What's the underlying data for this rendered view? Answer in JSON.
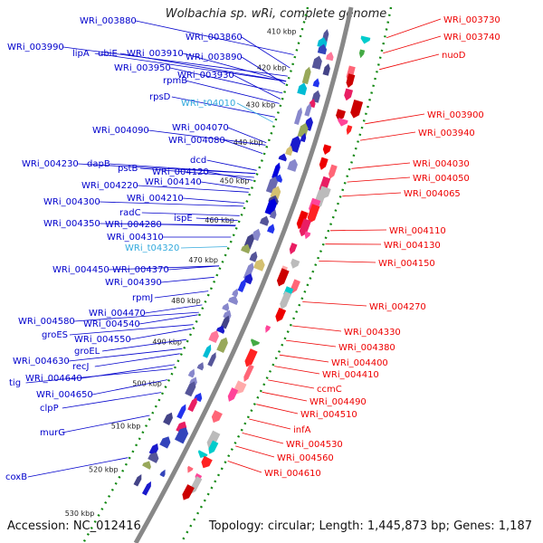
{
  "title": "Wolbachia sp. wRi, complete genome",
  "accession": "Accession: NC_012416",
  "summary": "Topology: circular; Length: 1,445,873 bp; Genes: 1,187",
  "colors": {
    "forward": "#0000cc",
    "reverse": "#ee0000",
    "trna": "#33aadd",
    "backbone": "#888888",
    "ticks": "#118811"
  },
  "ticks": [
    "410 kbp",
    "420 kbp",
    "430 kbp",
    "440 kbp",
    "450 kbp",
    "460 kbp",
    "470 kbp",
    "480 kbp",
    "490 kbp",
    "500 kbp",
    "510 kbp",
    "520 kbp",
    "530 kbp"
  ],
  "left_labels": [
    "WRi_003880",
    "WRi_003860",
    "WRi_003990",
    "lipA",
    "ubiE",
    "WRi_003910",
    "WRi_003890",
    "WRi_003950",
    "WRi_003930",
    "rpmB",
    "rpsD",
    "WRi_t04010",
    "WRi_004070",
    "WRi_004090",
    "WRi_004080",
    "dcd",
    "WRi_004230",
    "dapB",
    "pstB",
    "WRi_004120",
    "WRi_004140",
    "WRi_004220",
    "WRi_004210",
    "WRi_004300",
    "radC",
    "ispE",
    "WRi_004350",
    "WRi_004280",
    "WRi_004310",
    "WRi_t04320",
    "WRi_004450",
    "WRi_004370",
    "WRi_004390",
    "rpmJ",
    "WRi_004470",
    "WRi_004580",
    "WRi_004540",
    "groES",
    "WRi_004550",
    "groEL",
    "WRi_004630",
    "recJ",
    "WRi_004640",
    "tig",
    "WRi_004650",
    "clpP",
    "murG",
    "coxB"
  ],
  "right_labels": [
    "WRi_003730",
    "WRi_003740",
    "nuoD",
    "WRi_003900",
    "WRi_003940",
    "WRi_004030",
    "WRi_004050",
    "WRi_004065",
    "WRi_004110",
    "WRi_004130",
    "WRi_004150",
    "WRi_004270",
    "WRi_004330",
    "WRi_004380",
    "WRi_004400",
    "WRi_004410",
    "ccmC",
    "WRi_004490",
    "WRi_004510",
    "infA",
    "WRi_004530",
    "WRi_004560",
    "WRi_004610"
  ]
}
